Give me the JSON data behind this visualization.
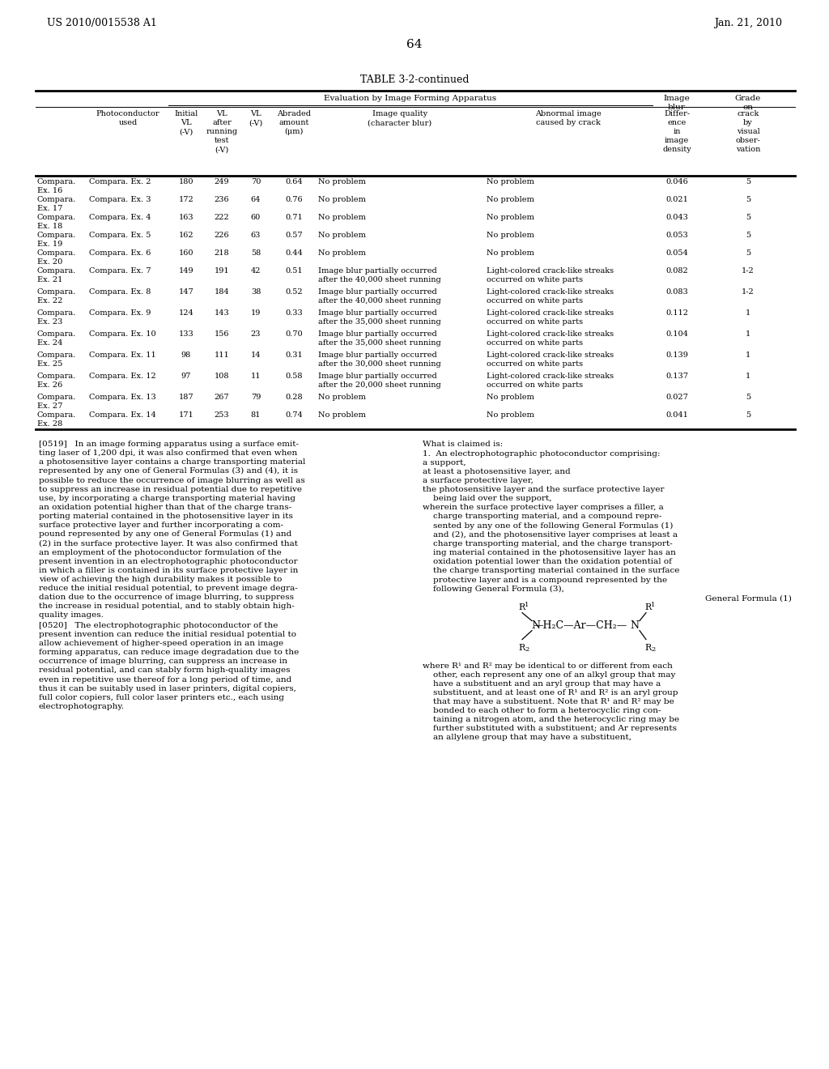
{
  "page_number": "64",
  "header_left": "US 2010/0015538 A1",
  "header_right": "Jan. 21, 2010",
  "table_title": "TABLE 3-2-continued",
  "rows": [
    [
      "Compara.\nEx. 16",
      "Compara. Ex. 2",
      "180",
      "249",
      "70",
      "0.64",
      "No problem",
      "No problem",
      "0.046",
      "5"
    ],
    [
      "Compara.\nEx. 17",
      "Compara. Ex. 3",
      "172",
      "236",
      "64",
      "0.76",
      "No problem",
      "No problem",
      "0.021",
      "5"
    ],
    [
      "Compara.\nEx. 18",
      "Compara. Ex. 4",
      "163",
      "222",
      "60",
      "0.71",
      "No problem",
      "No problem",
      "0.043",
      "5"
    ],
    [
      "Compara.\nEx. 19",
      "Compara. Ex. 5",
      "162",
      "226",
      "63",
      "0.57",
      "No problem",
      "No problem",
      "0.053",
      "5"
    ],
    [
      "Compara.\nEx. 20",
      "Compara. Ex. 6",
      "160",
      "218",
      "58",
      "0.44",
      "No problem",
      "No problem",
      "0.054",
      "5"
    ],
    [
      "Compara.\nEx. 21",
      "Compara. Ex. 7",
      "149",
      "191",
      "42",
      "0.51",
      "Image blur partially occurred\nafter the 40,000 sheet running",
      "Light-colored crack-like streaks\noccurred on white parts",
      "0.082",
      "1-2"
    ],
    [
      "Compara.\nEx. 22",
      "Compara. Ex. 8",
      "147",
      "184",
      "38",
      "0.52",
      "Image blur partially occurred\nafter the 40,000 sheet running",
      "Light-colored crack-like streaks\noccurred on white parts",
      "0.083",
      "1-2"
    ],
    [
      "Compara.\nEx. 23",
      "Compara. Ex. 9",
      "124",
      "143",
      "19",
      "0.33",
      "Image blur partially occurred\nafter the 35,000 sheet running",
      "Light-colored crack-like streaks\noccurred on white parts",
      "0.112",
      "1"
    ],
    [
      "Compara.\nEx. 24",
      "Compara. Ex. 10",
      "133",
      "156",
      "23",
      "0.70",
      "Image blur partially occurred\nafter the 35,000 sheet running",
      "Light-colored crack-like streaks\noccurred on white parts",
      "0.104",
      "1"
    ],
    [
      "Compara.\nEx. 25",
      "Compara. Ex. 11",
      "98",
      "111",
      "14",
      "0.31",
      "Image blur partially occurred\nafter the 30,000 sheet running",
      "Light-colored crack-like streaks\noccurred on white parts",
      "0.139",
      "1"
    ],
    [
      "Compara.\nEx. 26",
      "Compara. Ex. 12",
      "97",
      "108",
      "11",
      "0.58",
      "Image blur partially occurred\nafter the 20,000 sheet running",
      "Light-colored crack-like streaks\noccurred on white parts",
      "0.137",
      "1"
    ],
    [
      "Compara.\nEx. 27",
      "Compara. Ex. 13",
      "187",
      "267",
      "79",
      "0.28",
      "No problem",
      "No problem",
      "0.027",
      "5"
    ],
    [
      "Compara.\nEx. 28",
      "Compara. Ex. 14",
      "171",
      "253",
      "81",
      "0.74",
      "No problem",
      "No problem",
      "0.041",
      "5"
    ]
  ],
  "left_para1": "[0519]   In an image forming apparatus using a surface emit-\nting laser of 1,200 dpi, it was also confirmed that even when\na photosensitive layer contains a charge transporting material\nrepresented by any one of General Formulas (3) and (4), it is\npossible to reduce the occurrence of image blurring as well as\nto suppress an increase in residual potential due to repetitive\nuse, by incorporating a charge transporting material having\nan oxidation potential higher than that of the charge trans-\nporting material contained in the photosensitive layer in its\nsurface protective layer and further incorporating a com-\npound represented by any one of General Formulas (1) and\n(2) in the surface protective layer. It was also confirmed that\nan employment of the photoconductor formulation of the\npresent invention in an electrophotographic photoconductor\nin which a filler is contained in its surface protective layer in\nview of achieving the high durability makes it possible to\nreduce the initial residual potential, to prevent image degra-\ndation due to the occurrence of image blurring, to suppress\nthe increase in residual potential, and to stably obtain high-\nquality images.",
  "left_para2": "[0520]   The electrophotographic photoconductor of the\npresent invention can reduce the initial residual potential to\nallow achievement of higher-speed operation in an image\nforming apparatus, can reduce image degradation due to the\noccurrence of image blurring, can suppress an increase in\nresidual potential, and can stably form high-quality images\neven in repetitive use thereof for a long period of time, and\nthus it can be suitably used in laser printers, digital copiers,\nfull color copiers, full color laser printers etc., each using\nelectrophotography.",
  "right_header": "What is claimed is:",
  "right_claim": "1.  An electrophotographic photoconductor comprising:\na support,\nat least a photosensitive layer, and\na surface protective layer,\nthe photosensitive layer and the surface protective layer\n    being laid over the support,\nwherein the surface protective layer comprises a filler, a\n    charge transporting material, and a compound repre-\n    sented by any one of the following General Formulas (1)\n    and (2), and the photosensitive layer comprises at least a\n    charge transporting material, and the charge transport-\n    ing material contained in the photosensitive layer has an\n    oxidation potential lower than the oxidation potential of\n    the charge transporting material contained in the surface\n    protective layer and is a compound represented by the\n    following General Formula (3),",
  "right_where": "where R¹ and R² may be identical to or different from each\n    other, each represent any one of an alkyl group that may\n    have a substituent and an aryl group that may have a\n    substituent, and at least one of R¹ and R² is an aryl group\n    that may have a substituent. Note that R¹ and R² may be\n    bonded to each other to form a heterocyclic ring con-\n    taining a nitrogen atom, and the heterocyclic ring may be\n    further substituted with a substituent; and Ar represents\n    an allylene group that may have a substituent,",
  "formula_label": "General Formula (1)",
  "background_color": "#ffffff"
}
